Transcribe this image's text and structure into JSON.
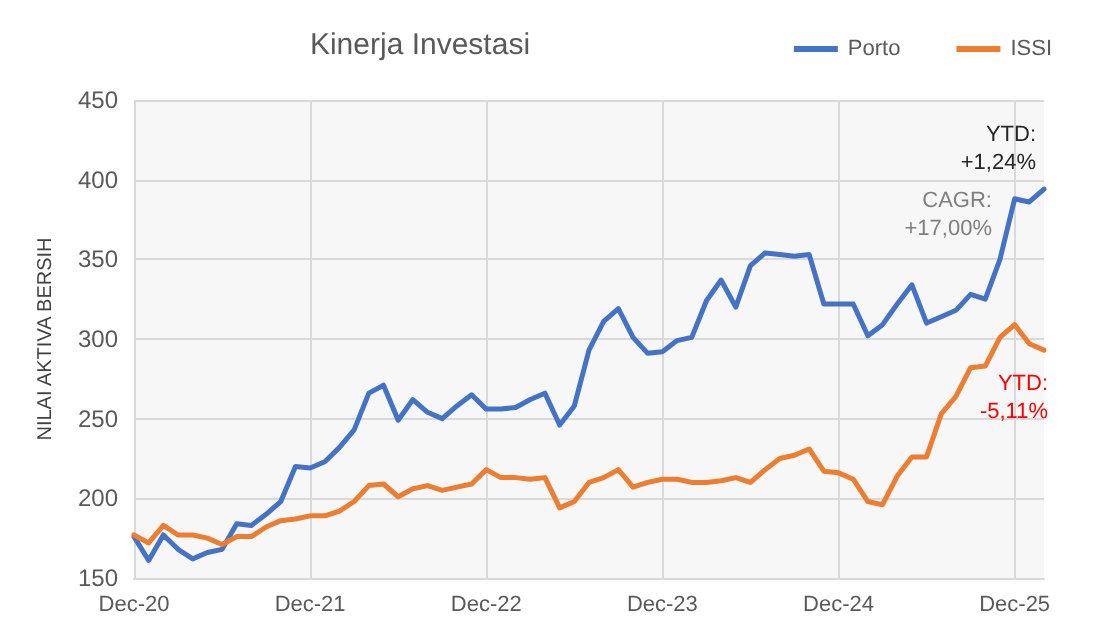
{
  "chart_data": {
    "type": "line",
    "title": "Kinerja Investasi",
    "ylabel": "NILAI AKTIVA BERSIH",
    "categories": [
      "Dec-20",
      null,
      null,
      null,
      null,
      null,
      null,
      null,
      null,
      null,
      null,
      null,
      "Dec-21",
      null,
      null,
      null,
      null,
      null,
      null,
      null,
      null,
      null,
      null,
      null,
      "Dec-22",
      null,
      null,
      null,
      null,
      null,
      null,
      null,
      null,
      null,
      null,
      null,
      "Dec-23",
      null,
      null,
      null,
      null,
      null,
      null,
      null,
      null,
      null,
      null,
      null,
      "Dec-24",
      null,
      null,
      null,
      null,
      null,
      null,
      null,
      null,
      null,
      null,
      null,
      "Dec-25",
      null,
      null
    ],
    "series": [
      {
        "name": "Porto",
        "color": "#4472c4",
        "values": [
          176,
          161,
          177,
          168,
          162,
          166,
          168,
          184,
          183,
          190,
          198,
          220,
          219,
          223,
          232,
          243,
          266,
          271,
          249,
          262,
          254,
          250,
          258,
          265,
          256,
          256,
          257,
          262,
          266,
          246,
          258,
          293,
          311,
          319,
          301,
          291,
          292,
          299,
          301,
          324,
          337,
          320,
          346,
          354,
          353,
          352,
          353,
          322,
          322,
          322,
          302,
          309,
          322,
          334,
          310,
          314,
          318,
          328,
          325,
          350,
          388,
          386,
          394
        ]
      },
      {
        "name": "ISSI",
        "color": "#ed7d31",
        "values": [
          177,
          172,
          183,
          177,
          177,
          175,
          171,
          176,
          176,
          182,
          186,
          187,
          189,
          189,
          192,
          198,
          208,
          209,
          201,
          206,
          208,
          205,
          207,
          209,
          218,
          213,
          213,
          212,
          213,
          194,
          198,
          210,
          213,
          218,
          207,
          210,
          212,
          212,
          210,
          210,
          211,
          213,
          210,
          218,
          225,
          227,
          231,
          217,
          216,
          212,
          198,
          196,
          214,
          226,
          226,
          253,
          264,
          282,
          283,
          301,
          309,
          297,
          293
        ]
      }
    ],
    "ylim": [
      150,
      450
    ],
    "yticks": [
      150,
      200,
      250,
      300,
      350,
      400,
      450
    ],
    "annotations": [
      "YTD:\n+1,24%",
      "CAGR:\n+17,00%",
      "YTD:\n-5,11%"
    ],
    "grid": true,
    "legend": "top right",
    "marker": "none",
    "line_style": "solid"
  }
}
